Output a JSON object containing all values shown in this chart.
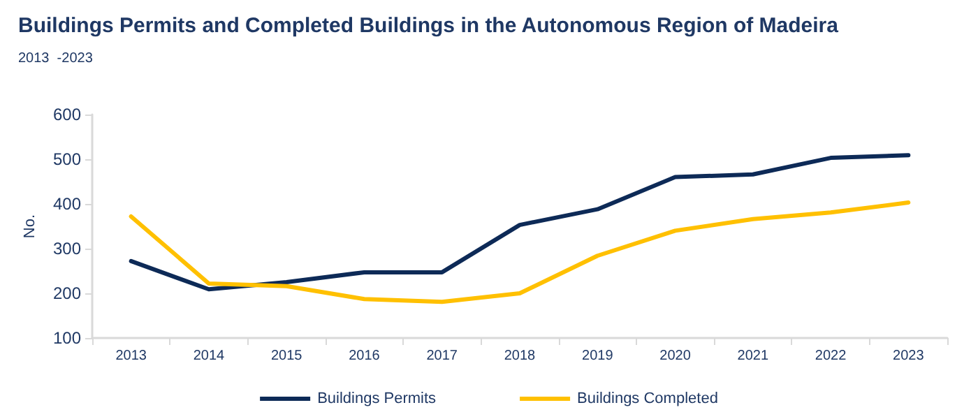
{
  "chart_data": {
    "type": "line",
    "title": "Buildings Permits and Completed Buildings in the Autonomous Region of Madeira",
    "subtitle": "2013  -2023",
    "ylabel": "No.",
    "categories": [
      "2013",
      "2014",
      "2015",
      "2016",
      "2017",
      "2018",
      "2019",
      "2020",
      "2021",
      "2022",
      "2023"
    ],
    "series": [
      {
        "name": "Buildings Permits",
        "color": "#0d2a57",
        "values": [
          272,
          209,
          225,
          247,
          247,
          353,
          388,
          460,
          466,
          503,
          509
        ]
      },
      {
        "name": "Buildings Completed",
        "color": "#ffc000",
        "values": [
          372,
          222,
          216,
          187,
          181,
          200,
          284,
          340,
          366,
          381,
          403
        ]
      }
    ],
    "ylim": [
      100,
      600
    ],
    "yticks": [
      100,
      200,
      300,
      400,
      500,
      600
    ],
    "grid": false,
    "legend": "bottom",
    "marker": "none",
    "line_style": "solid"
  }
}
